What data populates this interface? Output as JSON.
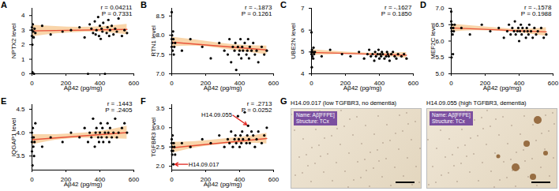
{
  "chart_data": [
    {
      "type": "scatter",
      "title": "A",
      "xlabel": "Aβ42 (pg/mg)",
      "ylabel": "NPTX2 level",
      "xlim": [
        0,
        600
      ],
      "xticks": [
        0,
        200,
        400,
        600
      ],
      "ylim": [
        0,
        4.5
      ],
      "yticks": [
        0,
        1,
        2,
        3,
        4
      ],
      "color": "#000000",
      "x": [
        0,
        0,
        0,
        2,
        3,
        5,
        8,
        10,
        12,
        15,
        20,
        60,
        110,
        180,
        230,
        280,
        310,
        330,
        340,
        350,
        360,
        370,
        375,
        380,
        390,
        395,
        400,
        405,
        410,
        415,
        420,
        430,
        440,
        445,
        450,
        455,
        460,
        470,
        480,
        490,
        500,
        510,
        530,
        545,
        560
      ],
      "values": [
        3.0,
        2.6,
        3.2,
        2.0,
        0.1,
        3.4,
        2.9,
        2.5,
        0.0,
        3.1,
        2.8,
        3.3,
        2.7,
        2.9,
        3.0,
        3.2,
        2.5,
        0.0,
        3.4,
        3.1,
        2.8,
        3.6,
        2.7,
        3.0,
        3.9,
        2.6,
        3.3,
        2.4,
        3.1,
        2.9,
        3.5,
        0.0,
        2.8,
        3.2,
        3.7,
        2.6,
        3.0,
        3.3,
        2.7,
        3.1,
        2.9,
        3.8,
        2.6,
        3.0,
        2.8
      ],
      "fit": {
        "x": [
          0,
          560
        ],
        "y": [
          2.95,
          3.05
        ],
        "color": "#e8533a"
      },
      "band": {
        "x": [
          0,
          140,
          280,
          420,
          560
        ],
        "lower": [
          2.55,
          2.75,
          2.85,
          2.85,
          2.7
        ],
        "upper": [
          3.35,
          3.25,
          3.2,
          3.25,
          3.4
        ],
        "color": "#f5b971"
      },
      "annotations": [
        "r = 0.04211",
        "P = 0.7331"
      ]
    },
    {
      "type": "scatter",
      "title": "B",
      "xlabel": "Aβ42 (pg/mg)",
      "ylabel": "RTN1 level",
      "xlim": [
        0,
        600
      ],
      "xticks": [
        0,
        200,
        400,
        600
      ],
      "ylim": [
        7.0,
        8.7
      ],
      "yticks": [
        {
          "value": 7,
          "label": "7.0"
        },
        7.5,
        {
          "value": 8,
          "label": "8.0"
        },
        8.5
      ],
      "color": "#000000",
      "x": [
        0,
        0,
        0,
        2,
        3,
        5,
        8,
        10,
        12,
        15,
        20,
        60,
        110,
        180,
        230,
        280,
        310,
        330,
        340,
        350,
        360,
        370,
        375,
        380,
        390,
        395,
        400,
        405,
        410,
        415,
        420,
        430,
        440,
        445,
        450,
        455,
        460,
        470,
        480,
        490,
        500,
        510,
        530,
        545,
        560
      ],
      "values": [
        8.6,
        7.9,
        7.7,
        8.0,
        7.8,
        7.6,
        8.1,
        7.9,
        7.5,
        7.7,
        7.8,
        7.6,
        7.9,
        7.7,
        7.4,
        7.8,
        7.6,
        7.5,
        7.9,
        7.3,
        7.7,
        7.6,
        7.8,
        7.1,
        7.7,
        7.5,
        7.6,
        7.9,
        7.4,
        7.7,
        7.6,
        7.8,
        7.5,
        7.6,
        7.9,
        7.4,
        7.7,
        7.6,
        7.8,
        7.5,
        7.6,
        7.3,
        7.7,
        7.5,
        7.6
      ],
      "fit": {
        "x": [
          0,
          560
        ],
        "y": [
          7.82,
          7.62
        ],
        "color": "#e8533a"
      },
      "band": {
        "x": [
          0,
          140,
          280,
          420,
          560
        ],
        "lower": [
          7.7,
          7.72,
          7.66,
          7.58,
          7.5
        ],
        "upper": [
          7.95,
          7.88,
          7.8,
          7.74,
          7.72
        ],
        "color": "#f5b971"
      },
      "annotations": [
        "r = -.1873",
        "P = 0.1261"
      ]
    },
    {
      "type": "scatter",
      "title": "C",
      "xlabel": "Aβ42 (pg/mg)",
      "ylabel": "UBE2N level",
      "xlim": [
        0,
        600
      ],
      "xticks": [
        0,
        200,
        400,
        600
      ],
      "ylim": [
        4,
        7
      ],
      "yticks": [
        4,
        5,
        6,
        7
      ],
      "color": "#000000",
      "x": [
        0,
        0,
        0,
        2,
        3,
        5,
        8,
        10,
        12,
        15,
        20,
        60,
        110,
        180,
        230,
        280,
        310,
        330,
        340,
        350,
        360,
        370,
        375,
        380,
        390,
        395,
        400,
        405,
        410,
        415,
        420,
        430,
        440,
        445,
        450,
        455,
        460,
        470,
        480,
        490,
        500,
        510,
        530,
        545,
        560
      ],
      "values": [
        5.9,
        5.0,
        4.9,
        4.3,
        5.1,
        4.8,
        5.0,
        4.7,
        5.2,
        4.9,
        5.0,
        4.8,
        5.1,
        4.9,
        4.8,
        5.0,
        4.7,
        4.9,
        5.1,
        4.8,
        4.9,
        4.6,
        5.0,
        4.8,
        4.9,
        5.1,
        4.7,
        4.9,
        4.8,
        5.0,
        4.9,
        4.7,
        4.8,
        5.0,
        4.9,
        4.8,
        4.6,
        4.9,
        5.0,
        4.8,
        4.7,
        4.9,
        4.8,
        4.9,
        4.7
      ],
      "fit": {
        "x": [
          0,
          560
        ],
        "y": [
          4.98,
          4.85
        ],
        "color": "#e8533a"
      },
      "band": {
        "x": [
          0,
          140,
          280,
          420,
          560
        ],
        "lower": [
          4.85,
          4.89,
          4.87,
          4.8,
          4.72
        ],
        "upper": [
          5.11,
          5.03,
          4.97,
          4.95,
          4.98
        ],
        "color": "#f5b971"
      },
      "annotations": [
        "r = -.1627",
        "P = 0.1850"
      ]
    },
    {
      "type": "scatter",
      "title": "D",
      "xlabel": "Aβ42 (pg/mg)",
      "ylabel": "MEF2C level",
      "xlim": [
        0,
        600
      ],
      "xticks": [
        0,
        200,
        400,
        600
      ],
      "ylim": [
        5.0,
        7.0
      ],
      "yticks": [
        {
          "value": 5,
          "label": "5.0"
        },
        5.5,
        {
          "value": 6,
          "label": "6.0"
        },
        6.5,
        {
          "value": 7,
          "label": "7.0"
        }
      ],
      "color": "#000000",
      "x": [
        0,
        0,
        0,
        2,
        3,
        5,
        8,
        10,
        12,
        15,
        20,
        60,
        110,
        180,
        230,
        280,
        310,
        330,
        340,
        350,
        360,
        370,
        375,
        380,
        390,
        395,
        400,
        405,
        410,
        415,
        420,
        430,
        440,
        445,
        450,
        455,
        460,
        470,
        480,
        490,
        500,
        510,
        530,
        545,
        560
      ],
      "values": [
        6.9,
        6.6,
        6.4,
        5.5,
        6.3,
        6.5,
        6.2,
        5.6,
        6.4,
        6.3,
        6.5,
        6.4,
        6.2,
        6.5,
        6.3,
        6.4,
        6.1,
        6.3,
        6.5,
        6.2,
        6.4,
        6.3,
        6.6,
        6.2,
        6.3,
        6.4,
        6.0,
        6.3,
        6.5,
        6.2,
        6.4,
        6.3,
        6.1,
        6.4,
        6.3,
        6.2,
        6.5,
        6.3,
        6.1,
        6.4,
        6.2,
        6.3,
        6.4,
        6.1,
        6.2
      ],
      "fit": {
        "x": [
          0,
          560
        ],
        "y": [
          6.4,
          6.28
        ],
        "color": "#e8533a"
      },
      "band": {
        "x": [
          0,
          140,
          280,
          420,
          560
        ],
        "lower": [
          6.28,
          6.32,
          6.3,
          6.24,
          6.15
        ],
        "upper": [
          6.52,
          6.46,
          6.4,
          6.36,
          6.41
        ],
        "color": "#f5b971"
      },
      "annotations": [
        "r = -.1578",
        "P = 0.1988"
      ]
    },
    {
      "type": "scatter",
      "title": "E",
      "xlabel": "Aβ42 (pg/mg)",
      "ylabel": "IQGAP1 level",
      "xlim": [
        0,
        600
      ],
      "xticks": [
        0,
        200,
        400,
        600
      ],
      "ylim": [
        3.2,
        4.6
      ],
      "yticks": [
        3.5,
        {
          "value": 4,
          "label": "4.0"
        },
        4.5
      ],
      "color": "#000000",
      "x": [
        0,
        0,
        0,
        2,
        3,
        5,
        8,
        10,
        12,
        15,
        20,
        60,
        110,
        180,
        230,
        280,
        310,
        330,
        340,
        350,
        360,
        370,
        375,
        380,
        390,
        395,
        400,
        405,
        410,
        415,
        420,
        430,
        440,
        445,
        450,
        455,
        460,
        470,
        480,
        490,
        500,
        510,
        530,
        545,
        560
      ],
      "values": [
        4.0,
        3.8,
        3.6,
        3.9,
        3.3,
        4.1,
        3.7,
        3.9,
        3.5,
        3.8,
        4.2,
        3.7,
        3.9,
        3.8,
        4.0,
        3.9,
        4.1,
        3.8,
        4.0,
        3.9,
        4.3,
        3.7,
        4.0,
        4.1,
        3.9,
        3.8,
        4.0,
        4.2,
        3.9,
        4.1,
        3.8,
        4.0,
        3.9,
        4.2,
        4.0,
        3.8,
        4.1,
        3.9,
        4.0,
        4.3,
        3.9,
        4.0,
        4.1,
        4.2,
        4.0
      ],
      "fit": {
        "x": [
          0,
          560
        ],
        "y": [
          3.85,
          4.0
        ],
        "color": "#e8533a"
      },
      "band": {
        "x": [
          0,
          140,
          280,
          420,
          560
        ],
        "lower": [
          3.74,
          3.84,
          3.88,
          3.88,
          3.86
        ],
        "upper": [
          3.96,
          3.96,
          3.99,
          4.04,
          4.14
        ],
        "color": "#f5b971"
      },
      "annotations": [
        "r = .1443",
        "P = .2405"
      ]
    },
    {
      "type": "scatter",
      "title": "F",
      "xlabel": "Aβ42 (pg/mg)",
      "ylabel": "TGFBR3 level",
      "xlim": [
        0,
        600
      ],
      "xticks": [
        0,
        200,
        400,
        600
      ],
      "ylim": [
        1.9,
        3.6
      ],
      "yticks": [
        {
          "value": 2,
          "label": "2.0"
        },
        2.5,
        {
          "value": 3,
          "label": "3.0"
        },
        3.5
      ],
      "color": "#000000",
      "x": [
        0,
        0,
        0,
        2,
        3,
        5,
        8,
        10,
        12,
        15,
        20,
        60,
        110,
        180,
        230,
        280,
        310,
        330,
        340,
        350,
        360,
        370,
        375,
        380,
        390,
        395,
        400,
        405,
        410,
        415,
        420,
        430,
        440,
        445,
        450,
        455,
        460,
        470,
        480,
        490,
        500,
        510,
        530,
        545,
        560
      ],
      "values": [
        2.6,
        2.4,
        2.7,
        2.5,
        2.3,
        2.8,
        2.4,
        2.05,
        2.6,
        2.5,
        2.3,
        2.6,
        2.5,
        2.7,
        2.6,
        2.8,
        2.5,
        2.7,
        2.6,
        2.9,
        2.5,
        2.7,
        2.8,
        2.6,
        3.3,
        2.7,
        2.5,
        2.8,
        2.6,
        2.9,
        2.7,
        3.4,
        2.6,
        2.8,
        3.05,
        2.7,
        2.6,
        2.9,
        2.8,
        2.5,
        2.7,
        2.9,
        2.6,
        2.8,
        3.0
      ],
      "fit": {
        "x": [
          0,
          560
        ],
        "y": [
          2.48,
          2.72
        ],
        "color": "#e8533a"
      },
      "band": {
        "x": [
          0,
          140,
          280,
          420,
          560
        ],
        "lower": [
          2.34,
          2.48,
          2.56,
          2.6,
          2.58
        ],
        "upper": [
          2.62,
          2.64,
          2.7,
          2.76,
          2.86
        ],
        "color": "#f5b971"
      },
      "annotations": [
        "r = .2713",
        "P = 0.0252"
      ],
      "point_labels": [
        {
          "text": "H14.09.055",
          "x": 450,
          "y": 3.05
        },
        {
          "text": "H14.09.017",
          "x": 10,
          "y": 2.05
        }
      ],
      "point_label_color": "#e0201b"
    }
  ],
  "images": {
    "title": "G",
    "panels": [
      {
        "caption": "H14.09.017 (low TGFBR3, no dementia)",
        "tags": [
          "Name: Aβ[FFPE]",
          "Structure: TCx"
        ]
      },
      {
        "caption": "H14.09.055 (high TGFBR3, dementia)",
        "tags": [
          "Name: Aβ[FFPE]",
          "Structure: TCx"
        ]
      }
    ]
  }
}
